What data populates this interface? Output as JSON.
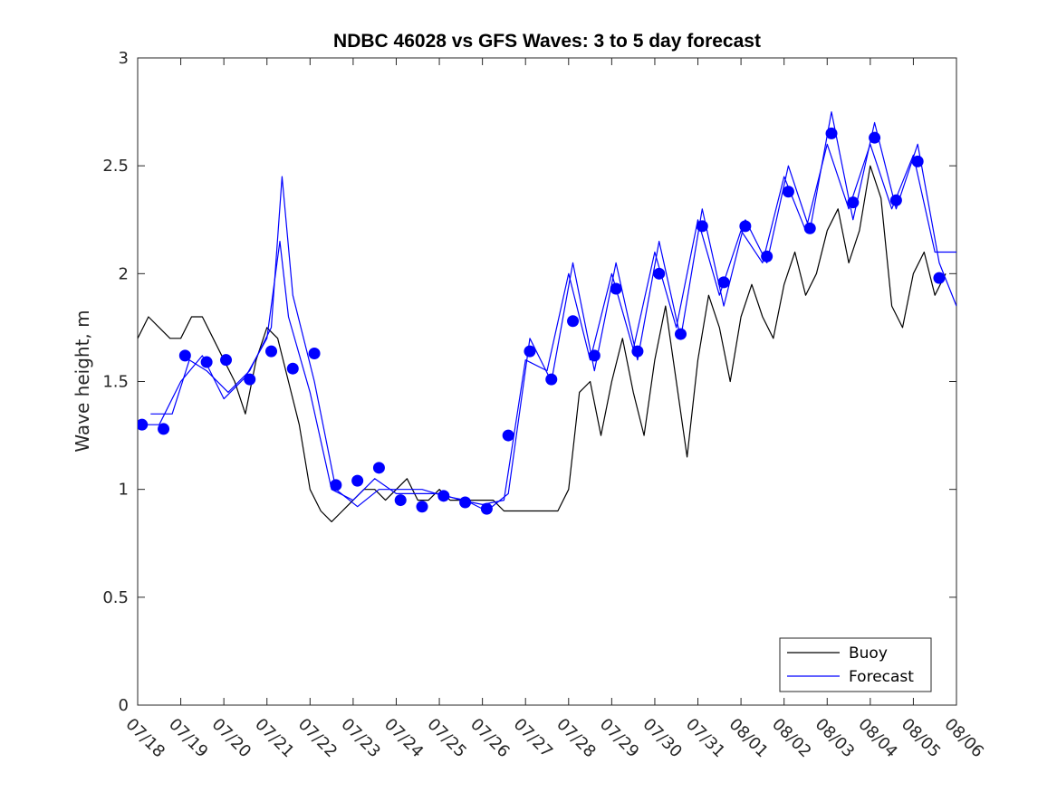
{
  "chart_data": {
    "type": "line",
    "title": "NDBC 46028 vs GFS Waves: 3 to 5 day forecast",
    "xlabel": "",
    "ylabel": "Wave height, m",
    "xlim": [
      "07/18",
      "08/06"
    ],
    "ylim": [
      0,
      3
    ],
    "x_ticks": [
      "07/18",
      "07/19",
      "07/20",
      "07/21",
      "07/22",
      "07/23",
      "07/24",
      "07/25",
      "07/26",
      "07/27",
      "07/28",
      "07/29",
      "07/30",
      "07/31",
      "08/01",
      "08/02",
      "08/03",
      "08/04",
      "08/05",
      "08/06"
    ],
    "y_ticks": [
      "0",
      "0.5",
      "1",
      "1.5",
      "2",
      "2.5",
      "3"
    ],
    "grid": false,
    "legend_position": "bottom-right",
    "colors": {
      "buoy": "#000000",
      "forecast": "#0000ff",
      "axes": "#262626"
    },
    "series": [
      {
        "name": "Buoy",
        "style": "line",
        "color": "#000000",
        "x": [
          0.0,
          0.25,
          0.5,
          0.75,
          1.0,
          1.25,
          1.5,
          1.75,
          2.0,
          2.25,
          2.5,
          2.75,
          3.0,
          3.25,
          3.5,
          3.75,
          4.0,
          4.25,
          4.5,
          4.75,
          5.0,
          5.25,
          5.5,
          5.75,
          6.0,
          6.25,
          6.5,
          6.75,
          7.0,
          7.25,
          7.5,
          7.75,
          8.0,
          8.25,
          8.5,
          8.75,
          9.0,
          9.25,
          9.5,
          9.75,
          10.0,
          10.25,
          10.5,
          10.75,
          11.0,
          11.25,
          11.5,
          11.75,
          12.0,
          12.25,
          12.5,
          12.75,
          13.0,
          13.25,
          13.5,
          13.75,
          14.0,
          14.25,
          14.5,
          14.75,
          15.0,
          15.25,
          15.5,
          15.75,
          16.0,
          16.25,
          16.5,
          16.75,
          17.0,
          17.25,
          17.5,
          17.75,
          18.0,
          18.25,
          18.5,
          18.75
        ],
        "values": [
          1.7,
          1.8,
          1.75,
          1.7,
          1.7,
          1.8,
          1.8,
          1.7,
          1.6,
          1.5,
          1.35,
          1.6,
          1.75,
          1.7,
          1.5,
          1.3,
          1.0,
          0.9,
          0.85,
          0.9,
          0.95,
          1.0,
          1.0,
          0.95,
          1.0,
          1.05,
          0.95,
          0.95,
          1.0,
          0.95,
          0.95,
          0.95,
          0.95,
          0.95,
          0.9,
          0.9,
          0.9,
          0.9,
          0.9,
          0.9,
          1.0,
          1.45,
          1.5,
          1.25,
          1.5,
          1.7,
          1.45,
          1.25,
          1.6,
          1.85,
          1.5,
          1.15,
          1.6,
          1.9,
          1.75,
          1.5,
          1.8,
          1.95,
          1.8,
          1.7,
          1.95,
          2.1,
          1.9,
          2.0,
          2.2,
          2.3,
          2.05,
          2.2,
          2.5,
          2.35,
          1.85,
          1.75,
          2.0,
          2.1,
          1.9,
          2.0
        ]
      },
      {
        "name": "Forecast",
        "style": "line",
        "color": "#0000ff",
        "x": [
          0.0,
          0.5,
          1.0,
          1.5,
          2.0,
          2.5,
          3.0,
          3.3,
          3.5,
          4.0,
          4.5,
          5.0,
          5.5,
          6.0,
          6.5,
          7.0,
          7.5,
          8.0,
          8.5,
          9.0,
          9.5,
          10.0,
          10.5,
          11.0,
          11.5,
          12.0,
          12.5,
          13.0,
          13.5,
          14.0,
          14.5,
          15.0,
          15.5,
          16.0,
          16.5,
          17.0,
          17.5,
          18.0,
          18.5,
          19.0
        ],
        "values": [
          1.3,
          1.3,
          1.5,
          1.62,
          1.42,
          1.52,
          1.7,
          2.15,
          1.8,
          1.45,
          1.0,
          0.95,
          1.05,
          0.98,
          0.98,
          0.98,
          0.95,
          0.93,
          0.95,
          1.6,
          1.55,
          2.0,
          1.6,
          2.0,
          1.65,
          2.1,
          1.75,
          2.25,
          1.9,
          2.2,
          2.05,
          2.45,
          2.2,
          2.6,
          2.3,
          2.6,
          2.3,
          2.55,
          2.1,
          2.1
        ]
      },
      {
        "name": "Forecast",
        "style": "line",
        "color": "#0000ff",
        "x": [
          0.3,
          0.8,
          1.2,
          1.6,
          2.1,
          2.6,
          3.1,
          3.35,
          3.6,
          4.1,
          4.6,
          5.1,
          5.6,
          6.1,
          6.6,
          7.1,
          7.6,
          8.1,
          8.6,
          9.1,
          9.6,
          10.1,
          10.6,
          11.1,
          11.6,
          12.1,
          12.6,
          13.1,
          13.6,
          14.1,
          14.6,
          15.1,
          15.6,
          16.1,
          16.6,
          17.1,
          17.6,
          18.1,
          18.6,
          19.0
        ],
        "values": [
          1.35,
          1.35,
          1.6,
          1.55,
          1.45,
          1.55,
          1.75,
          2.45,
          1.9,
          1.5,
          1.0,
          0.92,
          1.0,
          1.0,
          1.0,
          0.97,
          0.95,
          0.9,
          0.98,
          1.7,
          1.5,
          2.05,
          1.55,
          2.05,
          1.6,
          2.15,
          1.7,
          2.3,
          1.85,
          2.25,
          2.05,
          2.5,
          2.2,
          2.75,
          2.25,
          2.7,
          2.3,
          2.6,
          2.05,
          1.85
        ]
      },
      {
        "name": "",
        "style": "markers",
        "color": "#0000ff",
        "x": [
          0.1,
          0.6,
          1.1,
          1.6,
          2.05,
          2.6,
          3.1,
          3.6,
          4.1,
          4.6,
          5.1,
          5.6,
          6.1,
          6.6,
          7.1,
          7.6,
          8.1,
          8.6,
          9.1,
          9.6,
          10.1,
          10.6,
          11.1,
          11.6,
          12.1,
          12.6,
          13.1,
          13.6,
          14.1,
          14.6,
          15.1,
          15.6,
          16.1,
          16.6,
          17.1,
          17.6,
          18.1,
          18.6
        ],
        "values": [
          1.3,
          1.28,
          1.62,
          1.59,
          1.6,
          1.51,
          1.64,
          1.56,
          1.63,
          1.02,
          1.04,
          1.1,
          0.95,
          0.92,
          0.97,
          0.94,
          0.91,
          1.25,
          1.64,
          1.51,
          1.78,
          1.62,
          1.93,
          1.64,
          2.0,
          1.72,
          2.22,
          1.96,
          2.22,
          2.08,
          2.38,
          2.21,
          2.65,
          2.33,
          2.63,
          2.34,
          2.52,
          1.98
        ]
      }
    ],
    "legend": [
      {
        "label": "Buoy",
        "color": "#000000"
      },
      {
        "label": "Forecast",
        "color": "#0000ff"
      }
    ]
  }
}
